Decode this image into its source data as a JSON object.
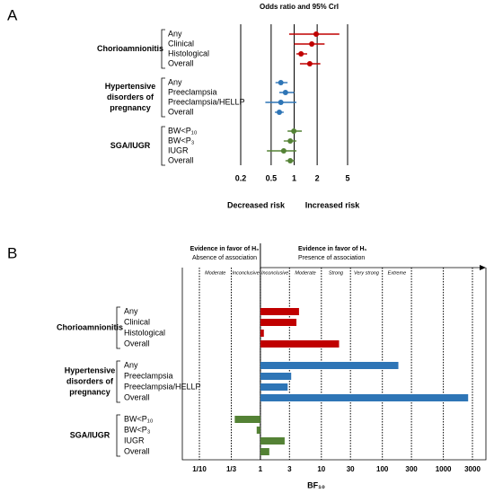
{
  "chart_data": [
    {
      "type": "forest",
      "panel": "A",
      "title": "Odds ratio and 95% CrI",
      "xscale": "log",
      "xlim": [
        0.2,
        5
      ],
      "xticks": [
        0.2,
        0.5,
        1,
        2,
        5
      ],
      "grid": true,
      "annotations": [
        "Decreased risk",
        "Increased risk"
      ],
      "groups": [
        {
          "label": [
            "Chorioamnionitis"
          ],
          "color": "#c00000",
          "categories": [
            "Any",
            "Clinical",
            "Histological",
            "Overall"
          ],
          "values": [
            1.94,
            1.7,
            1.23,
            1.6
          ],
          "lower": [
            0.86,
            1.0,
            1.07,
            1.19
          ],
          "upper": [
            3.9,
            2.5,
            1.48,
            2.2
          ]
        },
        {
          "label": [
            "Hypertensive",
            "disorders of",
            "pregnancy"
          ],
          "color": "#2e75b6",
          "categories": [
            "Any",
            "Preeclampsia",
            "Preeclampsia/HELLP",
            "Overall"
          ],
          "values": [
            0.67,
            0.77,
            0.67,
            0.64
          ],
          "lower": [
            0.57,
            0.64,
            0.42,
            0.56
          ],
          "upper": [
            0.82,
            1.0,
            1.07,
            0.73
          ]
        },
        {
          "label": [
            "SGA/IUGR"
          ],
          "color": "#548235",
          "categories": [
            "BW<P₁₀",
            "BW<P₃",
            "IUGR",
            "Overall"
          ],
          "values": [
            0.99,
            0.89,
            0.73,
            0.89
          ],
          "lower": [
            0.82,
            0.73,
            0.44,
            0.77
          ],
          "upper": [
            1.26,
            1.07,
            1.07,
            1.0
          ]
        }
      ]
    },
    {
      "type": "bar",
      "panel": "B",
      "xlabel": "BF₁₀",
      "xscale": "log",
      "xlim": [
        0.1,
        3000
      ],
      "xticks": [
        {
          "value": 0.1,
          "label": "1/10"
        },
        {
          "value": 0.3333,
          "label": "1/3"
        },
        1,
        3,
        10,
        30,
        100,
        300,
        1000,
        3000
      ],
      "headers": [
        [
          "Evidence in favor of H₀",
          "Absence of association"
        ],
        [
          "Evidence in favor of H₁",
          "Presence of association"
        ]
      ],
      "zones": [
        "Moderate",
        "Inconclusive",
        "Inconclusive",
        "Moderate",
        "Strong",
        "Very strong",
        "Extreme"
      ],
      "groups": [
        {
          "label": [
            "Chorioamnionitis"
          ],
          "color": "#c00000",
          "categories": [
            "Any",
            "Clinical",
            "Histological",
            "Overall"
          ],
          "values": [
            4.3,
            3.9,
            1.14,
            19.5
          ]
        },
        {
          "label": [
            "Hypertensive",
            "disorders of",
            "pregnancy"
          ],
          "color": "#2e75b6",
          "categories": [
            "Any",
            "Preeclampsia",
            "Preeclampsia/HELLP",
            "Overall"
          ],
          "values": [
            183,
            3.2,
            2.8,
            2550
          ]
        },
        {
          "label": [
            "SGA/IUGR"
          ],
          "color": "#548235",
          "categories": [
            "BW<P₁₀",
            "BW<P₃",
            "IUGR",
            "Overall"
          ],
          "values": [
            0.38,
            0.87,
            2.5,
            1.4
          ]
        }
      ]
    }
  ]
}
